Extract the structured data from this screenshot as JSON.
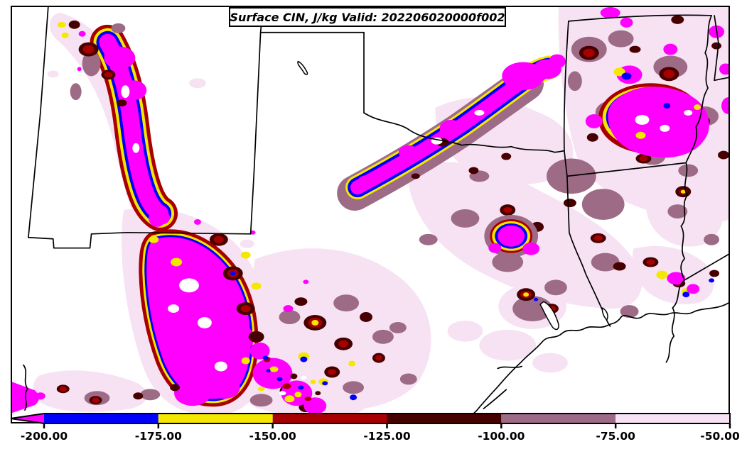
{
  "figure": {
    "background": "#ffffff",
    "frame_color": "#000000"
  },
  "chart_data": {
    "type": "heatmap",
    "subtype": "filled-contour-weather-map",
    "title": "Surface CIN, J/kg Valid: 202206020000f002",
    "variable": "Surface CIN",
    "units": "J/kg",
    "valid_time": "202206020000f002",
    "region": "South-central United States: Texas, Oklahoma, New Mexico, Arkansas, Louisiana and the Gulf Coast",
    "contour_levels": [
      -200,
      -175,
      -150,
      -125,
      -100,
      -75,
      -50
    ],
    "colorbar": {
      "orientation": "horizontal",
      "extend": "min",
      "tick_labels": [
        "-200.00",
        "-175.00",
        "-150.00",
        "-125.00",
        "-100.00",
        "-75.00",
        "-50.00"
      ],
      "segments": [
        {
          "range": "< -200",
          "color": "#ff00ff",
          "name": "magenta"
        },
        {
          "range": "-200 to -175",
          "color": "#0000ff",
          "name": "blue"
        },
        {
          "range": "-175 to -150",
          "color": "#f5e800",
          "name": "yellow"
        },
        {
          "range": "-150 to -125",
          "color": "#a80000",
          "name": "crimson"
        },
        {
          "range": "-125 to -100",
          "color": "#470000",
          "name": "maroon"
        },
        {
          "range": "-100 to -75",
          "color": "#9e6b87",
          "name": "mauve"
        },
        {
          "range": "-75 to -50",
          "color": "#f6e2f3",
          "name": "lightpink"
        }
      ]
    },
    "colors": {
      "magenta": "#ff00ff",
      "blue": "#0000ff",
      "yellow": "#f5e800",
      "crimson": "#a80000",
      "maroon": "#470000",
      "mauve": "#9e6b87",
      "lightpink": "#f6e2f3",
      "white": "#ffffff",
      "boundary": "#000000"
    },
    "features": [
      "Strong CIN < -200 J/kg (magenta) band over eastern New Mexico into far west Texas",
      "Magenta band along the Texas-Oklahoma Red River valley into southeastern Oklahoma",
      "Broad CIN < -200 J/kg maximum over central Arkansas",
      "Isolated magenta maximum over east-central Texas and near the Louisiana-Mississippi border",
      "Weak CIN (white, > -50 J/kg) over the Texas Panhandle, the Oklahoma panhandle region and the immediate Gulf Coast"
    ]
  }
}
